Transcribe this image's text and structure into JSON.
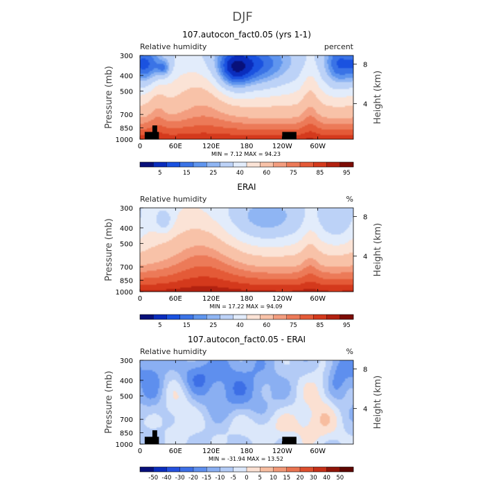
{
  "figure_title": "DJF",
  "chart_data": [
    {
      "type": "heatmap",
      "title": "107.autocon_fact0.05 (yrs 1-1)",
      "variable_label": "Relative humidity",
      "units_label": "percent",
      "ylabel": "Pressure (mb)",
      "y2label": "Height (km)",
      "x_ticks": [
        "0",
        "60E",
        "120E",
        "180",
        "120W",
        "60W"
      ],
      "y_ticks": [
        "300",
        "400",
        "500",
        "700",
        "850",
        "1000"
      ],
      "y2_ticks": [
        "8",
        "4"
      ],
      "stats_text": "MIN =    7.12   MAX =   94.23",
      "min": 7.12,
      "max": 94.23,
      "colorbar_ticks": [
        "5",
        "15",
        "25",
        "40",
        "60",
        "75",
        "85",
        "95"
      ],
      "colormap": "blue-white-red",
      "field": "full"
    },
    {
      "type": "heatmap",
      "title": "ERAI",
      "variable_label": "Relative humidity",
      "units_label": "%",
      "ylabel": "Pressure (mb)",
      "y2label": "Height (km)",
      "x_ticks": [
        "0",
        "60E",
        "120E",
        "180",
        "120W",
        "60W"
      ],
      "y_ticks": [
        "300",
        "400",
        "500",
        "700",
        "850",
        "1000"
      ],
      "y2_ticks": [
        "8",
        "4"
      ],
      "stats_text": "MIN =   17.22   MAX =   94.09",
      "min": 17.22,
      "max": 94.09,
      "colorbar_ticks": [
        "5",
        "15",
        "25",
        "40",
        "60",
        "75",
        "85",
        "95"
      ],
      "colormap": "blue-white-red",
      "field": "full"
    },
    {
      "type": "heatmap",
      "title": "107.autocon_fact0.05 - ERAI",
      "variable_label": "Relative humidity",
      "units_label": "%",
      "ylabel": "Pressure (mb)",
      "y2label": "Height (km)",
      "x_ticks": [
        "0",
        "60E",
        "120E",
        "180",
        "120W",
        "60W"
      ],
      "y_ticks": [
        "300",
        "400",
        "500",
        "700",
        "850",
        "1000"
      ],
      "y2_ticks": [
        "8",
        "4"
      ],
      "stats_text": "MIN =  -31.94   MAX =   13.52",
      "min": -31.94,
      "max": 13.52,
      "colorbar_ticks": [
        "-50",
        "-40",
        "-30",
        "-20",
        "-15",
        "-10",
        "-5",
        "0",
        "5",
        "10",
        "15",
        "20",
        "30",
        "40",
        "50"
      ],
      "colormap": "blue-white-red",
      "field": "difference"
    }
  ],
  "colors": {
    "full_scale": [
      "#08107a",
      "#0a2dbd",
      "#1a52e0",
      "#3a73e6",
      "#5f95ee",
      "#8fb5f3",
      "#bcd2f7",
      "#e2ecfb",
      "#fbe3d6",
      "#f8c2a8",
      "#f39d7f",
      "#ec7a58",
      "#e45a37",
      "#d4391c",
      "#b22110",
      "#7d0c05"
    ],
    "diff_scale": [
      "#08107a",
      "#0a2dbd",
      "#2450de",
      "#3d6fe6",
      "#5e8fee",
      "#8aaff2",
      "#b3cbf6",
      "#dbe7fa",
      "#fbe0d2",
      "#f7bda0",
      "#f19877",
      "#e97451",
      "#dd4f2e",
      "#c52f17",
      "#8f1408",
      "#5e0602"
    ]
  }
}
